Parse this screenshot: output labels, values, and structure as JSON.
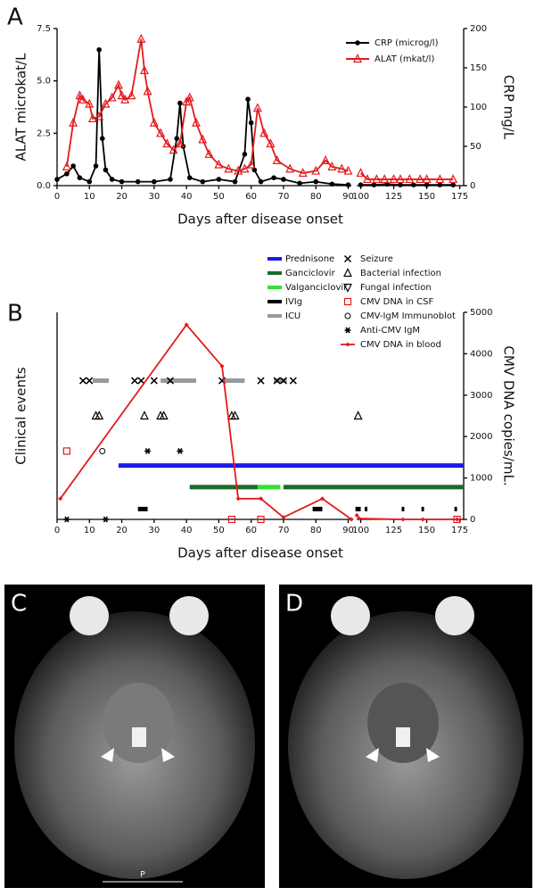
{
  "chart_data": [
    {
      "type": "line",
      "panel": "A",
      "xlabel": "Days after disease onset",
      "ylabel": "ALAT microkat/L",
      "y2label": "CRP mg/L",
      "xlim": [
        [
          0,
          91
        ],
        [
          97,
          178
        ]
      ],
      "xticks": [
        0,
        10,
        20,
        30,
        40,
        50,
        60,
        70,
        80,
        90,
        100,
        125,
        150,
        175
      ],
      "ylim": [
        0,
        7.5
      ],
      "yticks": [
        {
          "value": 0,
          "label": "0.0"
        },
        2.5,
        {
          "value": 5,
          "label": "5.0"
        },
        7.5
      ],
      "y2lim": [
        0,
        200
      ],
      "y2ticks": [
        0,
        50,
        100,
        150,
        200
      ],
      "legend": "upper right",
      "series": [
        {
          "name": "CRP (microg/l)",
          "color": "#000000",
          "marker": "circle",
          "axis": "y2",
          "x": [
            0,
            3,
            5,
            7,
            10,
            12,
            13,
            14,
            15,
            17,
            20,
            25,
            30,
            35,
            37,
            38,
            39,
            41,
            45,
            50,
            55,
            58,
            59,
            60,
            61,
            63,
            67,
            70,
            75,
            80,
            85,
            90,
            null,
            100,
            110,
            120,
            130,
            140,
            150,
            160,
            170
          ],
          "values": [
            8,
            15,
            25,
            10,
            5,
            25,
            173,
            60,
            20,
            8,
            5,
            5,
            5,
            8,
            60,
            105,
            50,
            10,
            5,
            8,
            5,
            40,
            110,
            80,
            20,
            5,
            10,
            8,
            3,
            5,
            2,
            1,
            null,
            1,
            1,
            2,
            1,
            1,
            1,
            1,
            1
          ]
        },
        {
          "name": "ALAT (mkat/l)",
          "color": "#e31a1c",
          "marker": "triangle",
          "x": [
            3,
            5,
            7,
            8,
            10,
            11,
            13,
            15,
            17,
            19,
            20,
            21,
            23,
            26,
            27,
            28,
            30,
            32,
            34,
            36,
            38,
            40,
            41,
            43,
            45,
            47,
            50,
            53,
            56,
            58,
            60,
            62,
            64,
            66,
            68,
            72,
            76,
            80,
            83,
            85,
            88,
            90,
            null,
            100,
            105,
            112,
            118,
            125,
            130,
            137,
            145,
            150,
            160,
            170
          ],
          "values": [
            0.9,
            3.0,
            4.3,
            4.1,
            3.9,
            3.2,
            3.3,
            3.9,
            4.2,
            4.8,
            4.3,
            4.1,
            4.3,
            7.0,
            5.5,
            4.5,
            3.0,
            2.5,
            2.0,
            1.7,
            2.0,
            4.0,
            4.2,
            3.0,
            2.2,
            1.5,
            1.0,
            0.8,
            0.7,
            0.8,
            1.0,
            3.7,
            2.5,
            2.0,
            1.2,
            0.8,
            0.6,
            0.7,
            1.2,
            0.9,
            0.8,
            0.7,
            null,
            0.6,
            0.3,
            0.3,
            0.3,
            0.3,
            0.3,
            0.3,
            0.3,
            0.3,
            0.3,
            0.3
          ]
        }
      ]
    },
    {
      "type": "timeline",
      "panel": "B",
      "xlabel": "Days after disease onset",
      "ylabel": "Clinical events",
      "y2label": "CMV DNA copies/mL.",
      "xlim": [
        [
          0,
          91
        ],
        [
          97,
          178
        ]
      ],
      "xticks": [
        0,
        10,
        20,
        30,
        40,
        50,
        60,
        70,
        80,
        90,
        100,
        125,
        150,
        175
      ],
      "y2lim": [
        0,
        5000
      ],
      "y2ticks": [
        0,
        1000,
        2000,
        3000,
        4000,
        5000
      ],
      "series": [
        {
          "name": "Prednisone",
          "kind": "range",
          "color": "#1a1ae6",
          "axis": "y2",
          "ranges": [
            [
              19,
              178
            ]
          ],
          "values": [
            1300
          ]
        },
        {
          "name": "Ganciclovir",
          "kind": "range",
          "color": "#1a6b2a",
          "axis": "y2",
          "ranges": [
            [
              41,
              62
            ],
            [
              70,
              178
            ]
          ],
          "values": [
            780,
            780
          ]
        },
        {
          "name": "Valganciclovir",
          "kind": "range",
          "color": "#33e033",
          "axis": "y2",
          "ranges": [
            [
              62,
              69
            ]
          ],
          "values": [
            780
          ]
        },
        {
          "name": "IVIg",
          "kind": "range",
          "color": "#000000",
          "axis": "y2",
          "ranges": [
            [
              25,
              28
            ],
            [
              79,
              82
            ],
            [
              96,
              100
            ],
            [
              103,
              105
            ],
            [
              131,
              133
            ],
            [
              146,
              148
            ],
            [
              171,
              173
            ]
          ],
          "values": [
            250,
            250,
            250,
            250,
            250,
            250,
            250
          ]
        },
        {
          "name": "ICU",
          "kind": "range",
          "color": "#999999",
          "axis": "y2",
          "ranges": [
            [
              11,
              16
            ],
            [
              32,
              43
            ],
            [
              51,
              58
            ],
            [
              67,
              71
            ]
          ],
          "values": [
            3350,
            3350,
            3350,
            3350
          ]
        },
        {
          "name": "Seizure",
          "kind": "marker",
          "marker": "x",
          "color": "#000000",
          "axis": "y2",
          "x": [
            8,
            10,
            24,
            26,
            30,
            35,
            51,
            63,
            68,
            70,
            73
          ],
          "values": [
            3350,
            3350,
            3350,
            3350,
            3350,
            3350,
            3350,
            3350,
            3350,
            3350,
            3350
          ]
        },
        {
          "name": "Bacterial infection",
          "kind": "marker",
          "marker": "triangle",
          "color": "#000000",
          "axis": "y2",
          "x": [
            12,
            13,
            27,
            32,
            33,
            54,
            55,
            98
          ],
          "values": [
            2500,
            2500,
            2500,
            2500,
            2500,
            2500,
            2500,
            2500
          ]
        },
        {
          "name": "Fungal infection",
          "kind": "marker",
          "marker": "triangle-down",
          "color": "#000000",
          "axis": "y2",
          "x": [],
          "values": []
        },
        {
          "name": "CMV DNA in CSF",
          "kind": "marker",
          "marker": "square",
          "color": "#e31a1c",
          "axis": "y2",
          "x": [
            3,
            54,
            63,
            173
          ],
          "values": [
            1650,
            0,
            0,
            0
          ]
        },
        {
          "name": "CMV-IgM Immunoblot",
          "kind": "marker",
          "marker": "open-circle",
          "color": "#000000",
          "axis": "y2",
          "x": [
            14
          ],
          "values": [
            1650
          ]
        },
        {
          "name": "Anti-CMV IgM",
          "kind": "marker",
          "marker": "asterisk",
          "color": "#000000",
          "axis": "y2",
          "x": [
            28,
            38,
            3,
            15
          ],
          "values": [
            1650,
            1650,
            0,
            0
          ]
        },
        {
          "name": "CMV DNA in blood",
          "kind": "line",
          "marker": "diamond",
          "color": "#e31a1c",
          "axis": "y2",
          "x": [
            1,
            40,
            51,
            56,
            63,
            70,
            82,
            91,
            null,
            97,
            99,
            132,
            147,
            173
          ],
          "values": [
            500,
            4700,
            3700,
            500,
            500,
            50,
            500,
            0,
            null,
            100,
            20,
            0,
            0,
            0
          ]
        }
      ]
    }
  ],
  "images": [
    {
      "panel": "C",
      "scale_label": "P"
    },
    {
      "panel": "D"
    }
  ]
}
